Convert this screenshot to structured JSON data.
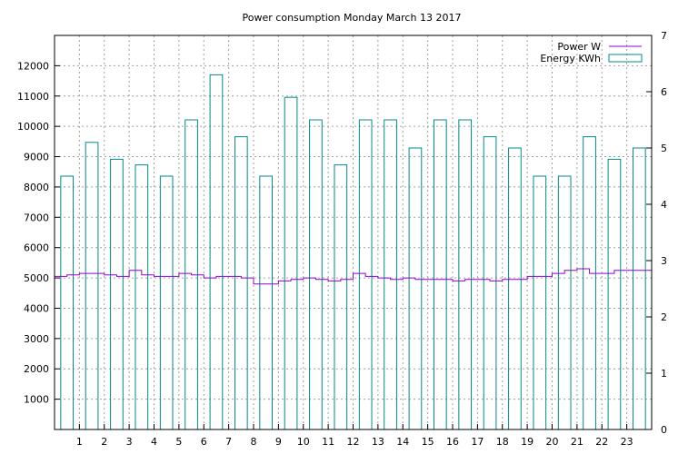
{
  "chart_data": {
    "type": "bar",
    "title": "Power consumption Monday March 13 2017",
    "xlabel": "",
    "ylabel": "",
    "y2label": "",
    "xlim": [
      0,
      24
    ],
    "ylim": [
      0,
      13000
    ],
    "y2lim": [
      0,
      7
    ],
    "grid": true,
    "legend_position": "top-right",
    "x_ticks": [
      "1",
      "2",
      "3",
      "4",
      "5",
      "6",
      "7",
      "8",
      "9",
      "10",
      "11",
      "12",
      "13",
      "14",
      "15",
      "16",
      "17",
      "18",
      "19",
      "20",
      "21",
      "22",
      "23"
    ],
    "y_ticks": [
      "1000",
      "2000",
      "3000",
      "4000",
      "5000",
      "6000",
      "7000",
      "8000",
      "9000",
      "10000",
      "11000",
      "12000"
    ],
    "y2_ticks": [
      "0",
      "1",
      "2",
      "3",
      "4",
      "5",
      "6",
      "7"
    ],
    "series": [
      {
        "name": "Power W",
        "axis": "y",
        "style": "steps",
        "color": "#9400d3",
        "x": [
          0,
          0.5,
          1,
          1.5,
          2,
          2.5,
          3,
          3.5,
          4,
          4.5,
          5,
          5.5,
          6,
          6.5,
          7,
          7.5,
          8,
          8.5,
          9,
          9.5,
          10,
          10.5,
          11,
          11.5,
          12,
          12.5,
          13,
          13.5,
          14,
          14.5,
          15,
          15.5,
          16,
          16.5,
          17,
          17.5,
          18,
          18.5,
          19,
          19.5,
          20,
          20.5,
          21,
          21.5,
          22,
          22.5,
          23,
          23.5,
          24
        ],
        "values": [
          5050,
          5100,
          5150,
          5150,
          5100,
          5050,
          5250,
          5100,
          5050,
          5050,
          5150,
          5100,
          5000,
          5050,
          5050,
          5000,
          4800,
          4800,
          4900,
          4950,
          5000,
          4950,
          4900,
          4950,
          5150,
          5050,
          5000,
          4950,
          5000,
          4950,
          4950,
          4950,
          4900,
          4950,
          4950,
          4900,
          4950,
          4950,
          5050,
          5050,
          5150,
          5250,
          5300,
          5150,
          5150,
          5250,
          5250,
          5250,
          5200
        ]
      },
      {
        "name": "Energy KWh",
        "axis": "y2",
        "style": "boxes",
        "color": "#008b8b",
        "categories": [
          "0",
          "1",
          "2",
          "3",
          "4",
          "5",
          "6",
          "7",
          "8",
          "9",
          "10",
          "11",
          "12",
          "13",
          "14",
          "15",
          "16",
          "17",
          "18",
          "19",
          "20",
          "21",
          "22",
          "23"
        ],
        "values": [
          4.5,
          5.1,
          4.8,
          4.7,
          4.5,
          5.5,
          6.3,
          5.2,
          4.5,
          5.9,
          5.5,
          4.7,
          5.5,
          5.5,
          5.0,
          5.5,
          5.5,
          5.2,
          5.0,
          4.5,
          4.5,
          5.2,
          4.8,
          5.0
        ]
      }
    ]
  }
}
